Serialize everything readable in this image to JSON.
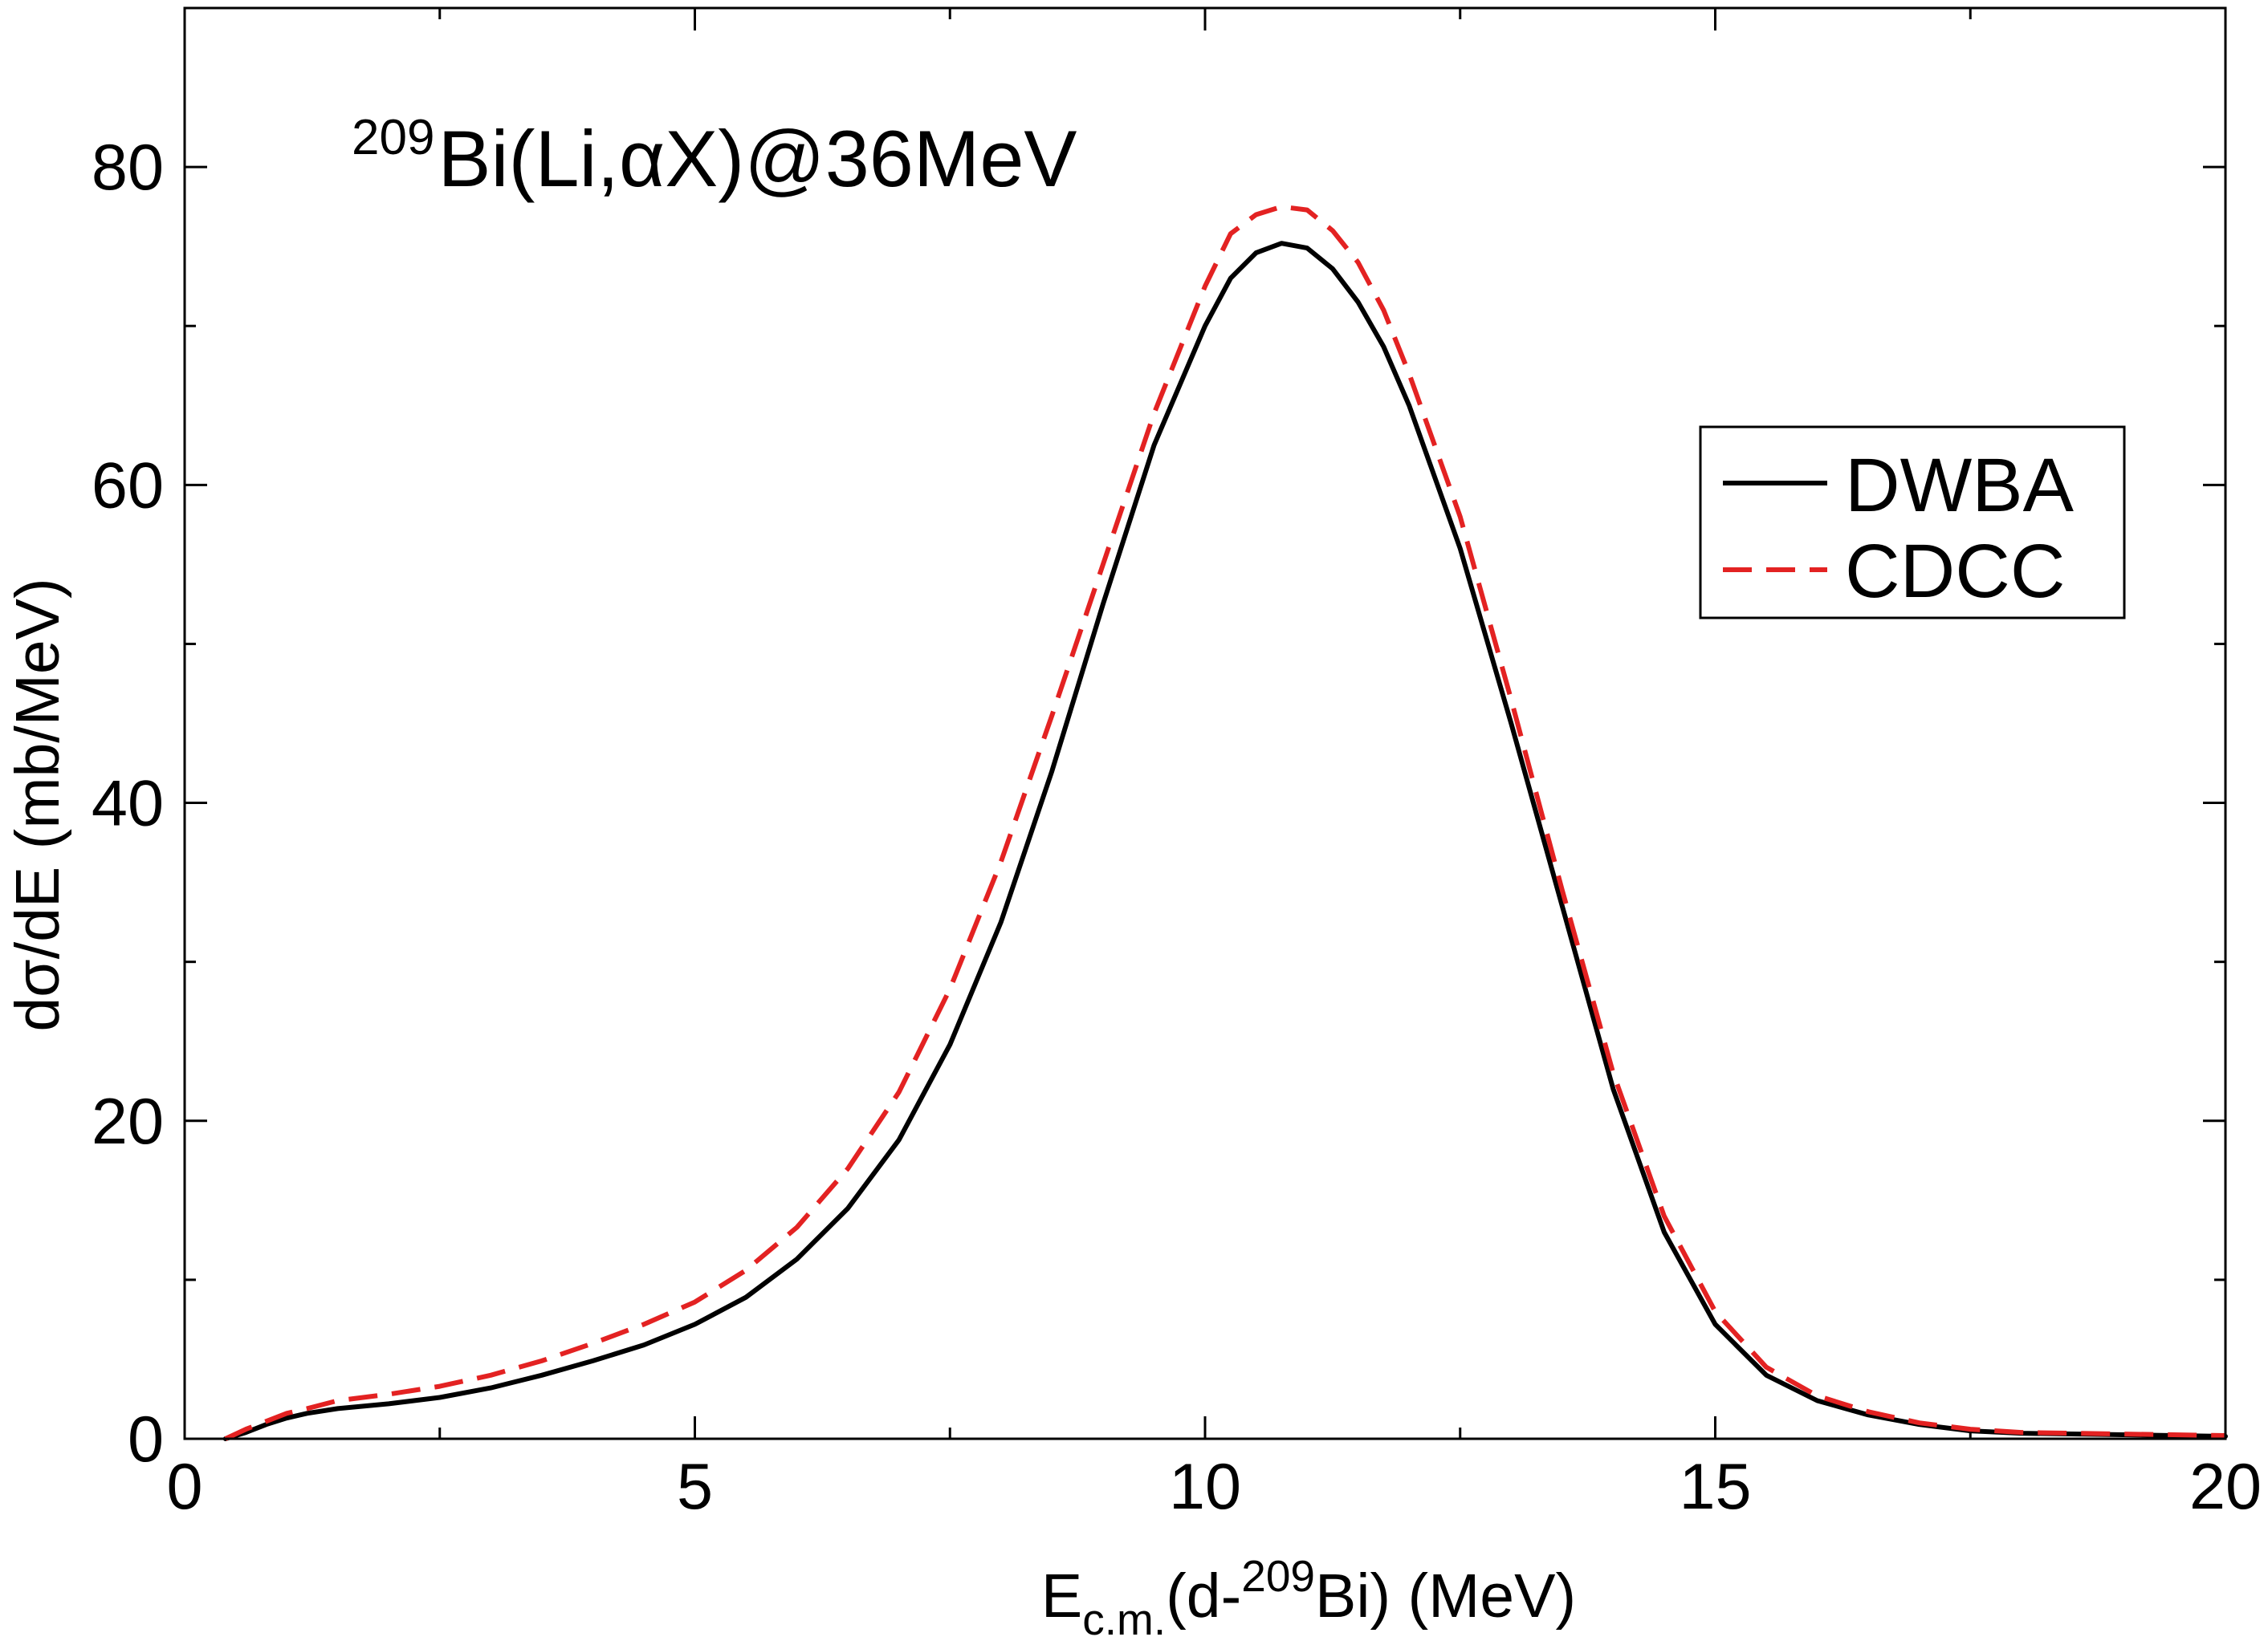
{
  "chart_data": {
    "type": "line",
    "title": "",
    "annotation": {
      "superscript": "209",
      "text": "Bi(Li,αX)@36MeV"
    },
    "xlabel": {
      "main": "E",
      "subscript": "c.m.",
      "mid": "(d-",
      "superscript": "209",
      "end": "Bi) (MeV)"
    },
    "ylabel": "dσ/dE (mb/MeV)",
    "xlim": [
      0,
      20
    ],
    "ylim": [
      0,
      90
    ],
    "xticks": [
      0,
      5,
      10,
      15,
      20
    ],
    "xtick_labels": [
      "0",
      "5",
      "10",
      "15",
      "20"
    ],
    "xminor": [
      2.5,
      7.5,
      12.5,
      17.5
    ],
    "yticks": [
      0,
      20,
      40,
      60,
      80
    ],
    "ytick_labels": [
      "0",
      "20",
      "40",
      "60",
      "80"
    ],
    "yminor": [
      10,
      30,
      50,
      70
    ],
    "grid": false,
    "legend_position": "right",
    "series": [
      {
        "name": "DWBA",
        "color": "#000000",
        "dash": "solid",
        "x": [
          0.4,
          0.6,
          0.8,
          1.0,
          1.2,
          1.5,
          2.0,
          2.5,
          3.0,
          3.5,
          4.0,
          4.5,
          5.0,
          5.5,
          6.0,
          6.5,
          7.0,
          7.5,
          8.0,
          8.5,
          9.0,
          9.5,
          10.0,
          10.25,
          10.5,
          10.75,
          11.0,
          11.25,
          11.5,
          11.75,
          12.0,
          12.5,
          13.0,
          13.5,
          14.0,
          14.5,
          15.0,
          15.5,
          16.0,
          16.5,
          17.0,
          17.5,
          18.0,
          19.0,
          20.0
        ],
        "y": [
          0.0,
          0.4,
          0.9,
          1.3,
          1.6,
          1.9,
          2.2,
          2.6,
          3.2,
          4.0,
          4.9,
          5.9,
          7.2,
          8.9,
          11.3,
          14.5,
          18.8,
          24.8,
          32.5,
          42.0,
          52.5,
          62.5,
          70.0,
          73.0,
          74.6,
          75.2,
          74.9,
          73.6,
          71.5,
          68.7,
          65.0,
          56.0,
          45.0,
          33.5,
          22.0,
          13.0,
          7.2,
          4.0,
          2.4,
          1.5,
          0.9,
          0.5,
          0.35,
          0.25,
          0.15
        ]
      },
      {
        "name": "CDCC",
        "color": "#e32222",
        "dash": "dashed",
        "x": [
          0.4,
          0.6,
          0.8,
          1.0,
          1.2,
          1.5,
          2.0,
          2.5,
          3.0,
          3.5,
          4.0,
          4.5,
          5.0,
          5.5,
          6.0,
          6.5,
          7.0,
          7.5,
          8.0,
          8.5,
          9.0,
          9.5,
          10.0,
          10.25,
          10.5,
          10.75,
          11.0,
          11.25,
          11.5,
          11.75,
          12.0,
          12.5,
          13.0,
          13.5,
          14.0,
          14.5,
          15.0,
          15.5,
          16.0,
          16.5,
          17.0,
          17.5,
          18.0,
          19.0,
          20.0
        ],
        "y": [
          0.0,
          0.6,
          1.1,
          1.6,
          1.9,
          2.4,
          2.8,
          3.3,
          4.0,
          4.9,
          6.0,
          7.2,
          8.6,
          10.6,
          13.3,
          17.0,
          21.8,
          28.3,
          36.3,
          45.5,
          55.0,
          64.5,
          72.5,
          75.8,
          77.0,
          77.5,
          77.3,
          76.0,
          74.0,
          71.0,
          67.0,
          58.0,
          46.5,
          34.5,
          23.0,
          14.0,
          8.0,
          4.5,
          2.7,
          1.7,
          1.0,
          0.6,
          0.4,
          0.3,
          0.2
        ]
      }
    ]
  }
}
